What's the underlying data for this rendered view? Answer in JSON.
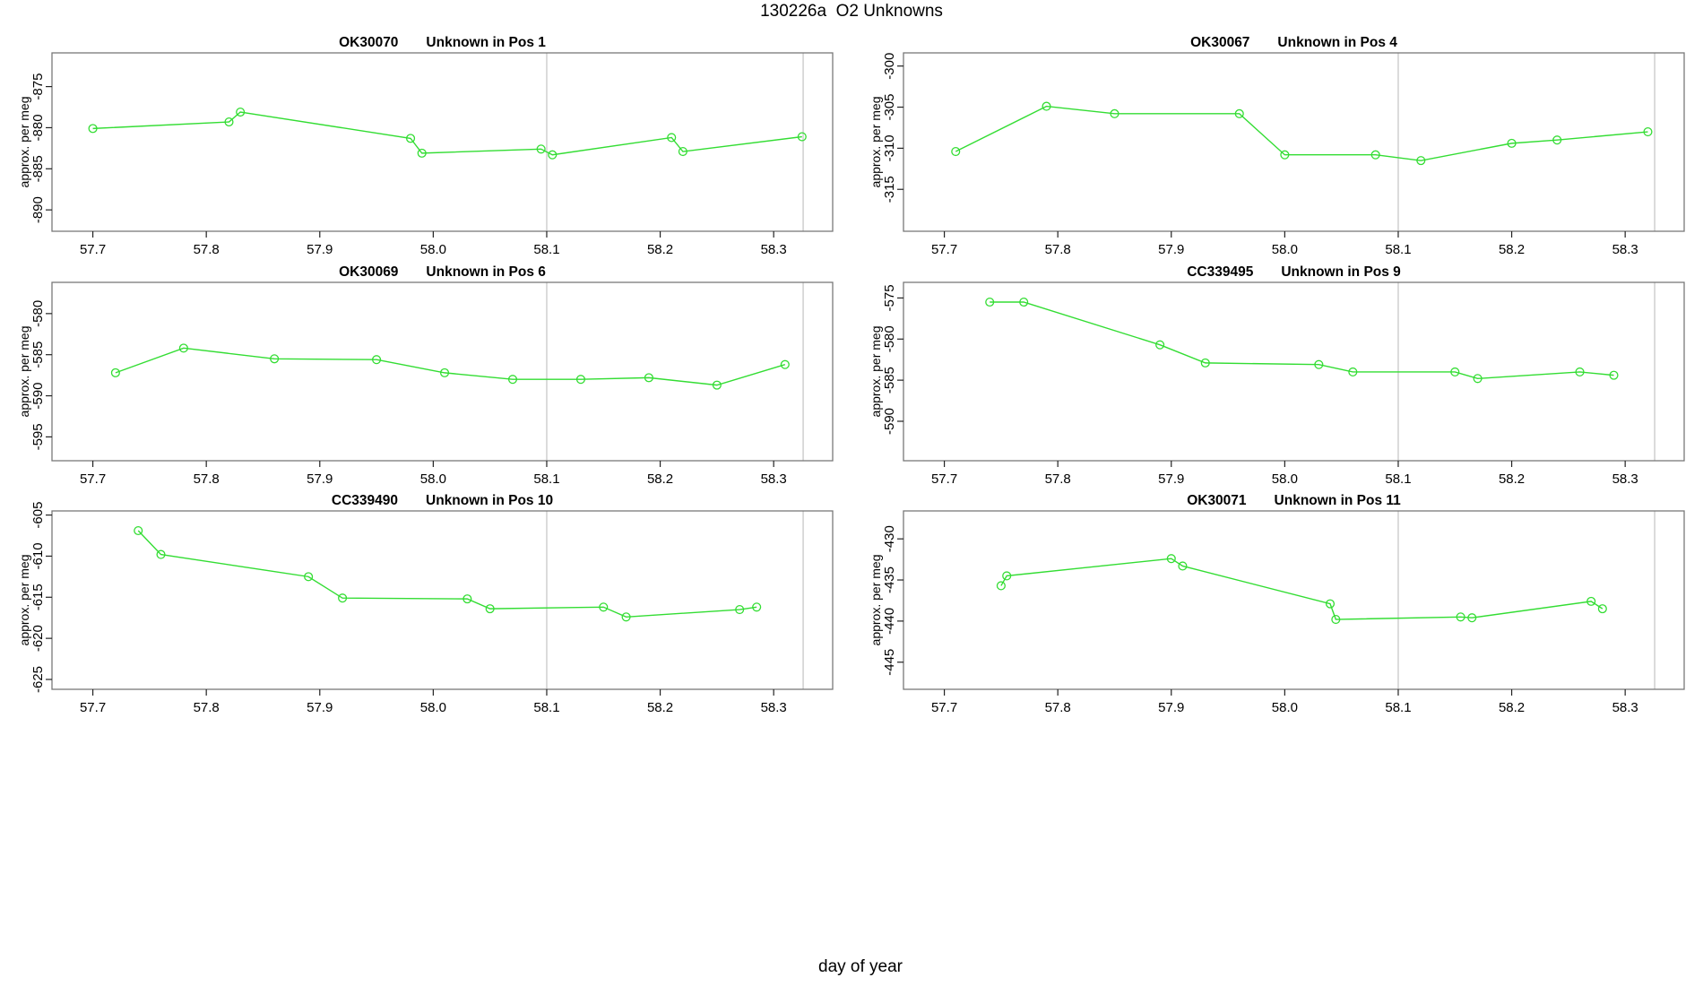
{
  "page_title": "130226a  O2 Unknowns",
  "footer_xlabel": "day of year",
  "colors": {
    "series": "#33dd33",
    "gridline": "#d2d2d2",
    "box": "#787878",
    "tick": "#222222",
    "text": "#000000",
    "background": "#ffffff"
  },
  "chart_data": [
    {
      "type": "line",
      "sample_id": "OK30070",
      "pos_label": "Unknown in Pos 1",
      "title": "OK30070    Unknown in Pos 1",
      "xlabel": "day of year",
      "ylabel": "approx. per meg",
      "xlim": [
        57.664,
        58.352
      ],
      "ylim": [
        -892.6,
        -870.9
      ],
      "x_ticks": [
        57.7,
        57.8,
        57.9,
        58.0,
        58.1,
        58.2,
        58.3
      ],
      "x_tick_labels": [
        "57.7",
        "57.8",
        "57.9",
        "58.0",
        "58.1",
        "58.2",
        "58.3"
      ],
      "y_ticks": [
        -890,
        -885,
        -880,
        -875
      ],
      "y_tick_labels": [
        "-890",
        "-885",
        "-880",
        "-875"
      ],
      "vlines": [
        58.1,
        58.326
      ],
      "marker": "open-circle",
      "grid": "vlines-only",
      "legend": "none",
      "x": [
        57.7,
        57.82,
        57.83,
        57.98,
        57.99,
        58.095,
        58.105,
        58.21,
        58.22,
        58.325
      ],
      "y": [
        -880.1,
        -879.3,
        -878.1,
        -881.3,
        -883.1,
        -882.6,
        -883.3,
        -881.2,
        -882.9,
        -881.1
      ]
    },
    {
      "type": "line",
      "sample_id": "OK30067",
      "pos_label": "Unknown in Pos 4",
      "title": "OK30067    Unknown in Pos 4",
      "xlabel": "day of year",
      "ylabel": "approx. per meg",
      "xlim": [
        57.664,
        58.352
      ],
      "ylim": [
        -320.1,
        -298.4
      ],
      "x_ticks": [
        57.7,
        57.8,
        57.9,
        58.0,
        58.1,
        58.2,
        58.3
      ],
      "x_tick_labels": [
        "57.7",
        "57.8",
        "57.9",
        "58.0",
        "58.1",
        "58.2",
        "58.3"
      ],
      "y_ticks": [
        -315,
        -310,
        -305,
        -300
      ],
      "y_tick_labels": [
        "-315",
        "-310",
        "-305",
        "-300"
      ],
      "vlines": [
        58.1,
        58.326
      ],
      "marker": "open-circle",
      "grid": "vlines-only",
      "legend": "none",
      "x": [
        57.71,
        57.79,
        57.85,
        57.96,
        58.0,
        58.08,
        58.12,
        58.2,
        58.24,
        58.32
      ],
      "y": [
        -310.4,
        -304.9,
        -305.8,
        -305.8,
        -310.8,
        -310.8,
        -311.5,
        -309.4,
        -309.0,
        -308.0
      ]
    },
    {
      "type": "line",
      "sample_id": "OK30069",
      "pos_label": "Unknown in Pos 6",
      "title": "OK30069    Unknown in Pos 6",
      "xlabel": "day of year",
      "ylabel": "approx. per meg",
      "xlim": [
        57.664,
        58.352
      ],
      "ylim": [
        -597.9,
        -576.2
      ],
      "x_ticks": [
        57.7,
        57.8,
        57.9,
        58.0,
        58.1,
        58.2,
        58.3
      ],
      "x_tick_labels": [
        "57.7",
        "57.8",
        "57.9",
        "58.0",
        "58.1",
        "58.2",
        "58.3"
      ],
      "y_ticks": [
        -595,
        -590,
        -585,
        -580
      ],
      "y_tick_labels": [
        "-595",
        "-590",
        "-585",
        "-580"
      ],
      "vlines": [
        58.1,
        58.326
      ],
      "marker": "open-circle",
      "grid": "vlines-only",
      "legend": "none",
      "x": [
        57.72,
        57.78,
        57.86,
        57.95,
        58.01,
        58.07,
        58.13,
        58.19,
        58.25,
        58.31
      ],
      "y": [
        -587.2,
        -584.2,
        -585.5,
        -585.6,
        -587.2,
        -588.0,
        -588.0,
        -587.8,
        -588.7,
        -586.2
      ]
    },
    {
      "type": "line",
      "sample_id": "CC339495",
      "pos_label": "Unknown in Pos 9",
      "title": "CC339495    Unknown in Pos 9",
      "xlabel": "day of year",
      "ylabel": "approx. per meg",
      "xlim": [
        57.664,
        58.352
      ],
      "ylim": [
        -594.8,
        -573.1
      ],
      "x_ticks": [
        57.7,
        57.8,
        57.9,
        58.0,
        58.1,
        58.2,
        58.3
      ],
      "x_tick_labels": [
        "57.7",
        "57.8",
        "57.9",
        "58.0",
        "58.1",
        "58.2",
        "58.3"
      ],
      "y_ticks": [
        -590,
        -585,
        -580,
        -575
      ],
      "y_tick_labels": [
        "-590",
        "-585",
        "-580",
        "-575"
      ],
      "vlines": [
        58.1,
        58.326
      ],
      "marker": "open-circle",
      "grid": "vlines-only",
      "legend": "none",
      "x": [
        57.74,
        57.77,
        57.89,
        57.93,
        58.03,
        58.06,
        58.15,
        58.17,
        58.26,
        58.29
      ],
      "y": [
        -575.5,
        -575.5,
        -580.7,
        -582.9,
        -583.1,
        -584.0,
        -584.0,
        -584.8,
        -584.0,
        -584.4
      ]
    },
    {
      "type": "line",
      "sample_id": "CC339490",
      "pos_label": "Unknown in Pos 10",
      "title": "CC339490    Unknown in Pos 10",
      "xlabel": "day of year",
      "ylabel": "approx. per meg",
      "xlim": [
        57.664,
        58.352
      ],
      "ylim": [
        -626.2,
        -604.5
      ],
      "x_ticks": [
        57.7,
        57.8,
        57.9,
        58.0,
        58.1,
        58.2,
        58.3
      ],
      "x_tick_labels": [
        "57.7",
        "57.8",
        "57.9",
        "58.0",
        "58.1",
        "58.2",
        "58.3"
      ],
      "y_ticks": [
        -625,
        -620,
        -615,
        -610,
        -605
      ],
      "y_tick_labels": [
        "-625",
        "-620",
        "-615",
        "-610",
        "-605"
      ],
      "vlines": [
        58.1,
        58.326
      ],
      "marker": "open-circle",
      "grid": "vlines-only",
      "legend": "none",
      "x": [
        57.74,
        57.76,
        57.89,
        57.92,
        58.03,
        58.05,
        58.15,
        58.17,
        58.27,
        58.285
      ],
      "y": [
        -606.9,
        -609.8,
        -612.5,
        -615.1,
        -615.2,
        -616.4,
        -616.2,
        -617.4,
        -616.5,
        -616.2
      ]
    },
    {
      "type": "line",
      "sample_id": "OK30071",
      "pos_label": "Unknown in Pos 11",
      "title": "OK30071    Unknown in Pos 11",
      "xlabel": "day of year",
      "ylabel": "approx. per meg",
      "xlim": [
        57.664,
        58.352
      ],
      "ylim": [
        -448.3,
        -426.6
      ],
      "x_ticks": [
        57.7,
        57.8,
        57.9,
        58.0,
        58.1,
        58.2,
        58.3
      ],
      "x_tick_labels": [
        "57.7",
        "57.8",
        "57.9",
        "58.0",
        "58.1",
        "58.2",
        "58.3"
      ],
      "y_ticks": [
        -445,
        -440,
        -435,
        -430
      ],
      "y_tick_labels": [
        "-445",
        "-440",
        "-435",
        "-430"
      ],
      "vlines": [
        58.1,
        58.326
      ],
      "marker": "open-circle",
      "grid": "vlines-only",
      "legend": "none",
      "x": [
        57.75,
        57.755,
        57.9,
        57.91,
        58.04,
        58.045,
        58.155,
        58.165,
        58.27,
        58.28
      ],
      "y": [
        -435.7,
        -434.5,
        -432.4,
        -433.3,
        -437.9,
        -439.8,
        -439.5,
        -439.6,
        -437.6,
        -438.5
      ]
    }
  ]
}
